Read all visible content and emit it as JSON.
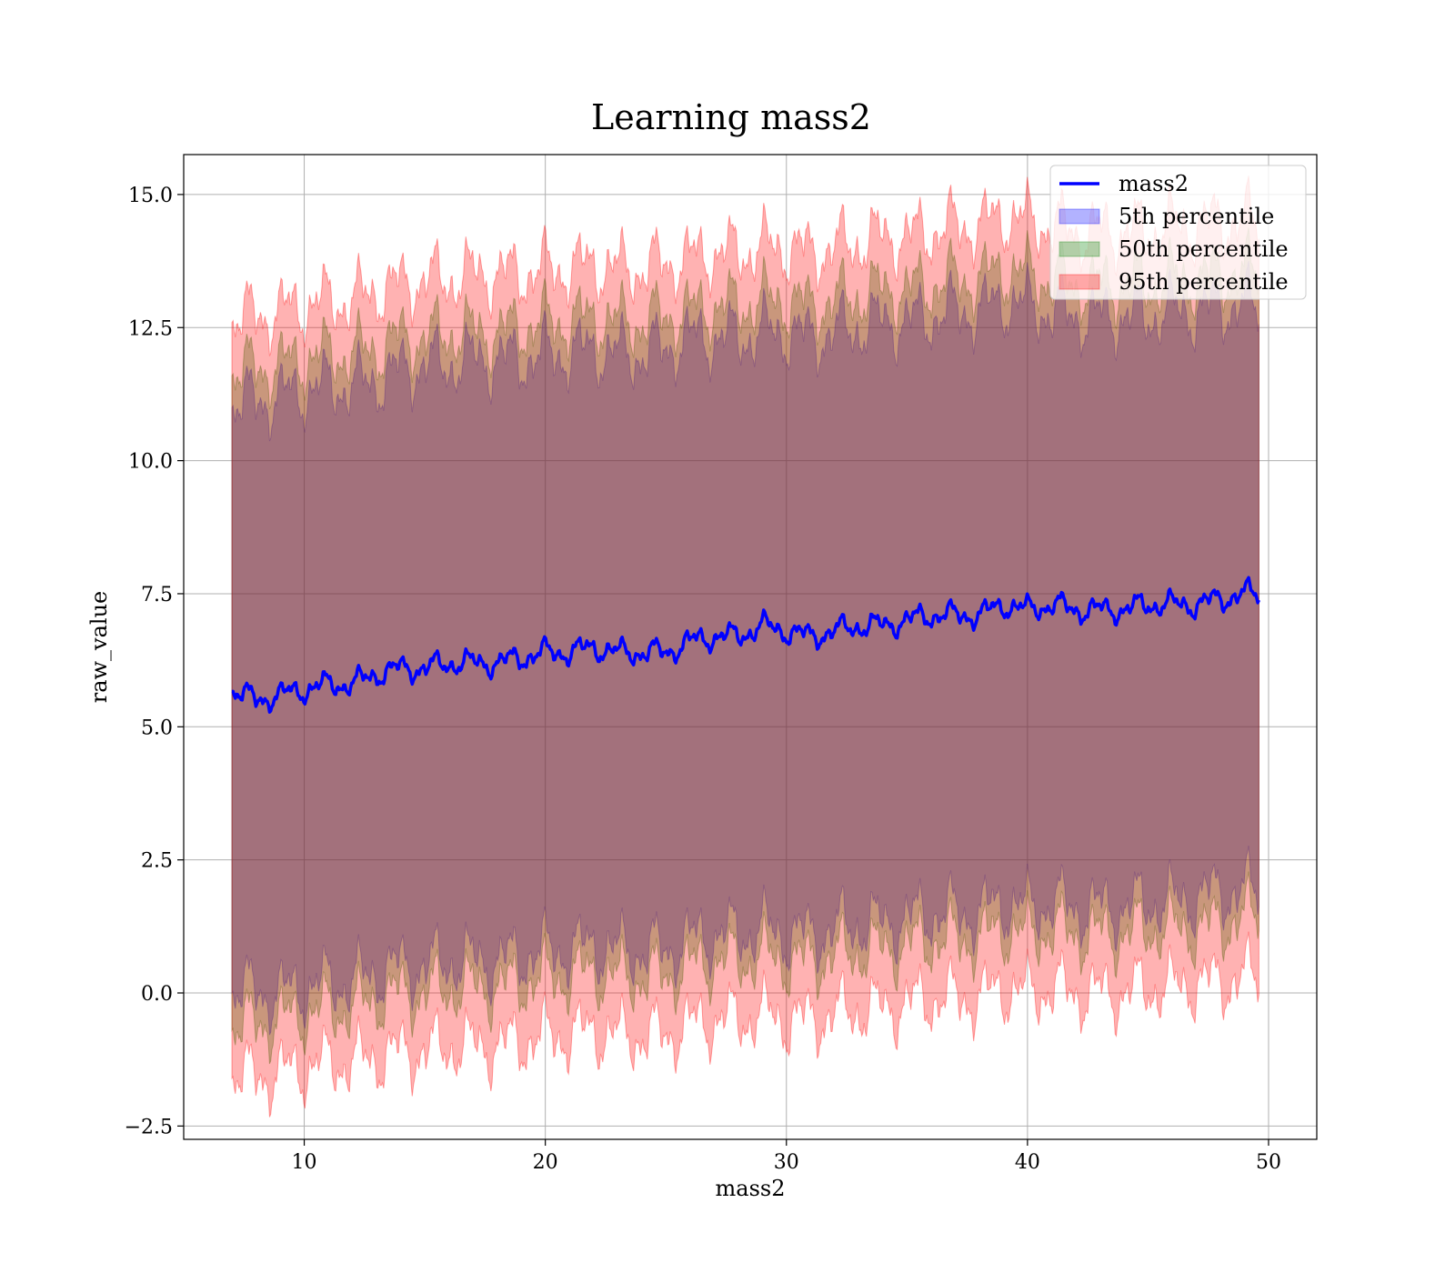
{
  "chart_data": {
    "type": "area",
    "title": "Learning mass2",
    "xlabel": "mass2",
    "ylabel": "raw_value",
    "xlim": [
      5,
      52
    ],
    "ylim": [
      -2.75,
      15.75
    ],
    "x_ticks": [
      10,
      20,
      30,
      40,
      50
    ],
    "y_ticks": [
      -2.5,
      0.0,
      2.5,
      5.0,
      7.5,
      10.0,
      12.5,
      15.0
    ],
    "x_tick_labels": [
      "10",
      "20",
      "30",
      "40",
      "50"
    ],
    "y_tick_labels": [
      "−2.5",
      "0.0",
      "2.5",
      "5.0",
      "7.5",
      "10.0",
      "12.5",
      "15.0"
    ],
    "grid": true,
    "legend_position": "top-right",
    "x": [
      7,
      8,
      9,
      10,
      11,
      12,
      13,
      14,
      15,
      16,
      17,
      18,
      19,
      20,
      21,
      22,
      23,
      24,
      25,
      26,
      27,
      28,
      29,
      30,
      31,
      32,
      33,
      34,
      35,
      36,
      37,
      38,
      39,
      40,
      41,
      42,
      43,
      44,
      45,
      46,
      47,
      48,
      49,
      49.6
    ],
    "series": [
      {
        "name": "mass2",
        "kind": "line",
        "color": "#0000ff",
        "values": [
          5.7,
          5.5,
          5.6,
          5.7,
          5.8,
          5.8,
          6.0,
          6.1,
          6.1,
          6.2,
          6.2,
          6.2,
          6.3,
          6.4,
          6.4,
          6.5,
          6.4,
          6.4,
          6.4,
          6.6,
          6.7,
          6.7,
          6.9,
          6.8,
          6.7,
          6.8,
          6.9,
          6.9,
          7.0,
          7.1,
          7.1,
          7.1,
          7.3,
          7.2,
          7.3,
          7.2,
          7.2,
          7.2,
          7.3,
          7.3,
          7.3,
          7.4,
          7.5,
          7.5
        ]
      },
      {
        "name": "5th percentile",
        "kind": "band",
        "color": "#0000ff",
        "upper": [
          11.1,
          11.1,
          11.2,
          11.3,
          11.4,
          11.4,
          11.5,
          11.7,
          11.8,
          11.8,
          11.9,
          11.9,
          11.9,
          12.0,
          12.0,
          12.1,
          12.0,
          12.0,
          12.1,
          12.3,
          12.3,
          12.3,
          12.4,
          12.4,
          12.3,
          12.4,
          12.5,
          12.6,
          12.6,
          12.7,
          12.8,
          12.8,
          13.0,
          12.9,
          12.8,
          12.7,
          12.7,
          12.7,
          12.7,
          12.8,
          12.8,
          12.9,
          12.9,
          12.9
        ],
        "lower": [
          0.1,
          0.0,
          0.0,
          0.1,
          0.2,
          0.2,
          0.4,
          0.5,
          0.5,
          0.6,
          0.6,
          0.6,
          0.7,
          0.8,
          0.8,
          0.9,
          0.8,
          0.8,
          0.8,
          1.0,
          1.1,
          1.1,
          1.2,
          1.1,
          1.1,
          1.2,
          1.3,
          1.3,
          1.4,
          1.5,
          1.5,
          1.5,
          1.7,
          1.6,
          1.7,
          1.6,
          1.6,
          1.6,
          1.7,
          1.7,
          1.8,
          1.9,
          1.9,
          1.95
        ]
      },
      {
        "name": "50th percentile",
        "kind": "band",
        "color": "#008000",
        "upper": [
          11.7,
          11.7,
          11.8,
          11.9,
          12.0,
          12.0,
          12.1,
          12.3,
          12.3,
          12.4,
          12.4,
          12.4,
          12.5,
          12.6,
          12.6,
          12.7,
          12.6,
          12.6,
          12.7,
          12.8,
          12.9,
          12.9,
          13.0,
          13.0,
          12.9,
          13.0,
          13.1,
          13.2,
          13.2,
          13.3,
          13.4,
          13.4,
          13.6,
          13.5,
          13.4,
          13.3,
          13.3,
          13.3,
          13.3,
          13.4,
          13.4,
          13.5,
          13.5,
          13.6
        ],
        "lower": [
          -0.6,
          -0.6,
          -0.5,
          -0.4,
          -0.3,
          -0.3,
          -0.1,
          0.0,
          0.0,
          0.1,
          0.1,
          0.1,
          0.2,
          0.3,
          0.3,
          0.4,
          0.3,
          0.3,
          0.3,
          0.5,
          0.6,
          0.6,
          0.7,
          0.6,
          0.6,
          0.7,
          0.8,
          0.8,
          0.9,
          1.0,
          1.0,
          1.0,
          1.2,
          1.1,
          1.2,
          1.1,
          1.1,
          1.1,
          1.2,
          1.2,
          1.2,
          1.3,
          1.4,
          1.5
        ]
      },
      {
        "name": "95th percentile",
        "kind": "band",
        "color": "#ff0000",
        "upper": [
          12.7,
          12.7,
          12.8,
          12.9,
          13.0,
          13.0,
          13.2,
          13.3,
          13.4,
          13.4,
          13.5,
          13.5,
          13.5,
          13.6,
          13.6,
          13.7,
          13.6,
          13.6,
          13.7,
          13.8,
          13.9,
          13.9,
          14.0,
          14.0,
          13.9,
          14.0,
          14.1,
          14.2,
          14.2,
          14.3,
          14.4,
          14.4,
          14.6,
          14.5,
          14.4,
          14.3,
          14.3,
          14.3,
          14.3,
          14.4,
          14.4,
          14.5,
          14.5,
          14.5
        ],
        "lower": [
          -1.5,
          -1.6,
          -1.5,
          -1.4,
          -1.3,
          -1.3,
          -1.2,
          -1.1,
          -1.1,
          -1.0,
          -1.0,
          -1.0,
          -0.9,
          -0.8,
          -0.8,
          -0.7,
          -0.8,
          -0.8,
          -0.8,
          -0.6,
          -0.5,
          -0.5,
          -0.4,
          -0.5,
          -0.5,
          -0.4,
          -0.3,
          -0.3,
          -0.2,
          -0.1,
          -0.1,
          -0.1,
          0.1,
          0.0,
          0.1,
          0.0,
          0.0,
          0.0,
          0.1,
          0.1,
          0.2,
          0.2,
          0.3,
          0.3
        ]
      }
    ]
  }
}
